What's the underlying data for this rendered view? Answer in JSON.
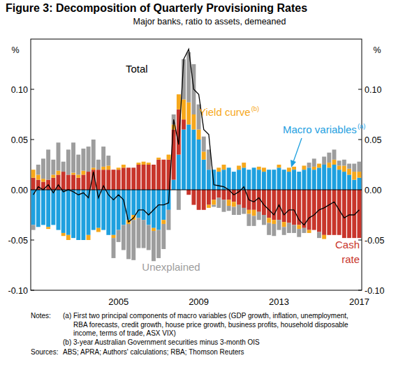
{
  "chart_data": {
    "type": "bar",
    "stacked": true,
    "title": "Figure 3: Decomposition of Quarterly Provisioning Rates",
    "subtitle": "Major banks, ratio to assets, demeaned",
    "y_label": "%",
    "ylim": [
      -0.1,
      0.15
    ],
    "yticks": [
      {
        "value": -0.1,
        "label": "-0.10"
      },
      -0.05,
      {
        "value": 0,
        "label": "0.00"
      },
      0.05,
      {
        "value": 0.1,
        "label": "0.10"
      }
    ],
    "grid": false,
    "categories": [
      null,
      null,
      null,
      null,
      null,
      null,
      null,
      null,
      null,
      null,
      null,
      null,
      null,
      null,
      null,
      null,
      null,
      "2005",
      null,
      null,
      null,
      null,
      null,
      null,
      null,
      null,
      null,
      null,
      null,
      null,
      null,
      null,
      null,
      "2009",
      null,
      null,
      null,
      null,
      null,
      null,
      null,
      null,
      null,
      null,
      null,
      null,
      null,
      null,
      null,
      "2013",
      null,
      null,
      null,
      null,
      null,
      null,
      null,
      null,
      null,
      null,
      null,
      null,
      null,
      null,
      null,
      "2017"
    ],
    "series": [
      {
        "name": "Macro variables",
        "sup": "(a)",
        "color": "#1ea0df",
        "values": [
          -0.035,
          -0.037,
          -0.035,
          -0.037,
          -0.035,
          -0.04,
          -0.043,
          -0.045,
          -0.048,
          -0.05,
          -0.05,
          -0.045,
          -0.04,
          -0.038,
          -0.04,
          -0.045,
          -0.045,
          -0.04,
          -0.035,
          -0.03,
          -0.025,
          -0.028,
          -0.03,
          -0.035,
          -0.038,
          -0.04,
          -0.03,
          -0.02,
          0.01,
          0.035,
          0.06,
          0.065,
          0.06,
          0.05,
          0.03,
          0.02,
          0.02,
          0.018,
          0.02,
          0.022,
          0.018,
          0.02,
          0.022,
          0.02,
          0.022,
          0.02,
          0.018,
          0.02,
          0.02,
          0.022,
          0.02,
          0.018,
          0.02,
          0.018,
          0.02,
          0.022,
          0.02,
          0.022,
          0.025,
          0.022,
          0.025,
          0.02,
          0.018,
          0.015,
          0.01,
          0.012
        ]
      },
      {
        "name": "Cash rate",
        "color": "#c8352b",
        "values": [
          0.012,
          0.01,
          0.008,
          0.01,
          0.012,
          0.015,
          0.018,
          0.015,
          0.015,
          0.012,
          0.015,
          0.018,
          0.02,
          0.02,
          0.02,
          0.02,
          0.02,
          0.02,
          0.022,
          0.022,
          0.022,
          0.025,
          0.025,
          0.025,
          0.025,
          0.03,
          0.03,
          0.03,
          0.05,
          0.045,
          0.01,
          -0.005,
          -0.015,
          -0.02,
          -0.02,
          -0.015,
          -0.01,
          -0.008,
          -0.01,
          -0.01,
          -0.012,
          -0.015,
          -0.018,
          -0.02,
          -0.02,
          -0.022,
          -0.025,
          -0.028,
          -0.03,
          -0.03,
          -0.032,
          -0.033,
          -0.035,
          -0.035,
          -0.038,
          -0.04,
          -0.04,
          -0.042,
          -0.045,
          -0.045,
          -0.045,
          -0.045,
          -0.048,
          -0.048,
          -0.048,
          -0.048
        ]
      },
      {
        "name": "Yield curve",
        "sup": "(b)",
        "color": "#f6a81c",
        "values": [
          0.008,
          0.005,
          0.003,
          -0.002,
          0.003,
          0.004,
          -0.003,
          -0.005,
          0.002,
          0.003,
          0.004,
          -0.005,
          0.002,
          -0.004,
          0.003,
          0.004,
          -0.003,
          0.002,
          0.003,
          -0.004,
          -0.005,
          0.002,
          0.003,
          0.002,
          -0.003,
          0.002,
          -0.004,
          0.005,
          0.005,
          0.015,
          0.02,
          0.022,
          0.015,
          0.01,
          0.008,
          -0.003,
          -0.005,
          0.004,
          0.005,
          -0.006,
          -0.005,
          0.004,
          0.005,
          -0.004,
          -0.006,
          0.003,
          0.004,
          -0.005,
          -0.004,
          0.003,
          -0.005,
          0.004,
          0.003,
          -0.004,
          0.004,
          -0.003,
          0.003,
          0.004,
          -0.004,
          0.005,
          0.005,
          0.004,
          0.006,
          0.006,
          0.008,
          0.006
        ]
      },
      {
        "name": "Unexplained",
        "color": "#9d9d9d",
        "values": [
          -0.005,
          0.01,
          0.02,
          0.03,
          0.015,
          0.028,
          0.01,
          0.025,
          0.03,
          0.02,
          0.022,
          0.025,
          0.028,
          0.01,
          0.02,
          0.01,
          -0.02,
          -0.012,
          -0.025,
          -0.035,
          -0.04,
          -0.03,
          -0.028,
          -0.025,
          -0.03,
          -0.028,
          -0.025,
          -0.02,
          0.01,
          -0.02,
          0.04,
          0.05,
          0.05,
          0.025,
          0.015,
          0.02,
          -0.002,
          -0.01,
          -0.012,
          -0.005,
          -0.008,
          -0.01,
          -0.006,
          -0.012,
          -0.01,
          -0.008,
          -0.01,
          -0.012,
          -0.012,
          -0.01,
          -0.008,
          -0.01,
          -0.008,
          -0.008,
          -0.005,
          0.005,
          0.008,
          -0.006,
          0.008,
          0.01,
          0.01,
          0.005,
          0.006,
          0.005,
          0.008,
          0.01
        ]
      },
      {
        "name": "Total",
        "type": "line",
        "color": "#000000",
        "values": [
          -0.005,
          0.003,
          0.0,
          0.005,
          -0.003,
          0.005,
          -0.002,
          0.0,
          -0.002,
          -0.005,
          -0.003,
          -0.008,
          0.018,
          -0.008,
          0.004,
          -0.005,
          -0.01,
          -0.005,
          -0.01,
          -0.032,
          -0.028,
          -0.02,
          -0.02,
          -0.025,
          -0.02,
          -0.015,
          -0.015,
          -0.013,
          0.07,
          0.045,
          0.13,
          0.14,
          0.1,
          0.095,
          0.06,
          0.055,
          0.005,
          0.004,
          0.003,
          0.0,
          -0.005,
          -0.002,
          0.003,
          -0.01,
          -0.012,
          -0.008,
          -0.015,
          -0.02,
          -0.025,
          -0.015,
          -0.025,
          -0.02,
          -0.02,
          -0.03,
          -0.035,
          -0.028,
          -0.025,
          -0.02,
          -0.018,
          -0.015,
          -0.012,
          -0.02,
          -0.028,
          -0.025,
          -0.025,
          -0.02
        ]
      }
    ],
    "footnotes": [
      {
        "lead": "Notes:",
        "items": [
          [
            "(a) First two principal components of macro variables (GDP growth, inflation, unemployment,",
            "RBA forecasts, credit growth, house price growth, business profits, household disposable",
            "income, terms of trade, ASX VIX)"
          ],
          [
            "(b) 3-year Australian Government securities minus 3-month OIS"
          ]
        ]
      },
      {
        "lead": "Sources:",
        "items": [
          [
            "ABS; APRA; Authors' calculations; RBA; Thomson Reuters"
          ]
        ]
      }
    ]
  }
}
